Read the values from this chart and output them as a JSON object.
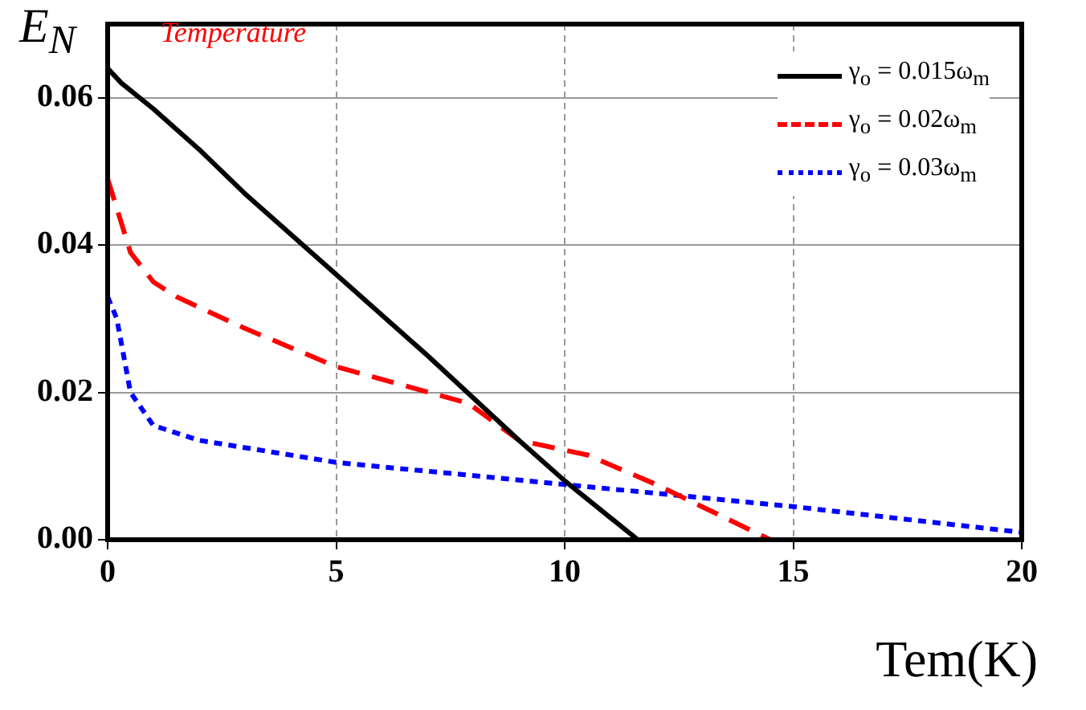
{
  "chart_data": {
    "type": "line",
    "xlabel": "Tem(K)",
    "ylabel": "E$_{N}$",
    "annotations": [
      "Temperature"
    ],
    "xlim": [
      0,
      20
    ],
    "xticks": [
      0,
      5,
      10,
      15,
      20
    ],
    "ylim": [
      0,
      0.07
    ],
    "yticks": [
      {
        "value": 0,
        "label": "0.00"
      },
      {
        "value": 0.02,
        "label": "0.02"
      },
      {
        "value": 0.04,
        "label": "0.04"
      },
      {
        "value": 0.06,
        "label": "0.06"
      }
    ],
    "grid": true,
    "legend": "top right",
    "marker": "none",
    "series": [
      {
        "name": "γ$_{o}$ = 0.015ω$_{m}$",
        "color": "#000000",
        "line_style": "solid",
        "x": [
          0,
          0.3,
          1,
          2,
          3,
          5,
          7,
          9,
          10,
          11.6,
          20
        ],
        "values": [
          0.064,
          0.062,
          0.0585,
          0.053,
          0.047,
          0.036,
          0.025,
          0.0135,
          0.008,
          0,
          0
        ]
      },
      {
        "name": "γ$_{o}$ = 0.02ω$_{m}$",
        "color": "#ff0000",
        "line_style": "dashed",
        "x": [
          0,
          0.2,
          0.5,
          1,
          1.5,
          3,
          5,
          7.9,
          9,
          10.5,
          12,
          13,
          14.5,
          20
        ],
        "values": [
          0.049,
          0.045,
          0.039,
          0.035,
          0.033,
          0.0287,
          0.0235,
          0.0185,
          0.0135,
          0.0115,
          0.0075,
          0.0045,
          0,
          0
        ]
      },
      {
        "name": "γ$_{o}$ = 0.03ω$_{m}$",
        "color": "#0000ff",
        "line_style": "dotted",
        "x": [
          0,
          0.2,
          0.5,
          1,
          2,
          5,
          10,
          15,
          20
        ],
        "values": [
          0.033,
          0.03,
          0.02,
          0.0155,
          0.0135,
          0.0105,
          0.0075,
          0.0045,
          0.001
        ]
      }
    ]
  }
}
